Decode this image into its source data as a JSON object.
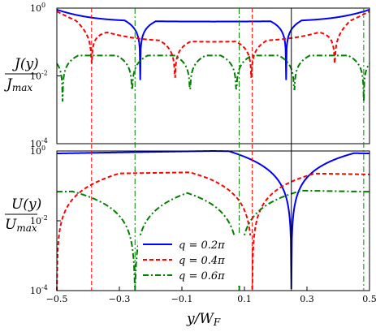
{
  "chart_data": [
    {
      "type": "line",
      "panel": "top",
      "ylabel": "J(y) / J_max",
      "ylabel_num": "J(y)",
      "ylabel_den": "J",
      "ylabel_den_sub": "max",
      "y_scale": "log",
      "ylim": [
        0.0001,
        1
      ],
      "y_ticks": [
        {
          "value": 1,
          "base": "10",
          "exp": "0"
        },
        {
          "value": 0.01,
          "base": "10",
          "exp": "-2"
        },
        {
          "value": 0.0001,
          "base": "10",
          "exp": "-4"
        }
      ],
      "xlim": [
        -0.5,
        0.5
      ],
      "grid": false,
      "series": [
        {
          "name": "q = 0.2π",
          "color": "#0000ff",
          "style": "solid",
          "q": 0.2,
          "dips": [
            -0.2333,
            0.2333
          ],
          "dip_floor": 0.00015,
          "plateau": 0.4,
          "edge": {
            "x": [
              -0.5,
              0.5
            ],
            "y": 0.9
          }
        },
        {
          "name": "q = 0.4π",
          "color": "#ff0000",
          "style": "dashed",
          "q": 0.4,
          "dips": [
            -0.3889,
            -0.1222,
            0.1222,
            0.3889
          ],
          "dip_floor": 0.0008,
          "plateau": 0.1,
          "edge": {
            "x": [
              -0.5,
              0.5
            ],
            "y": 0.8
          }
        },
        {
          "name": "q = 0.6π",
          "color": "#008000",
          "style": "dashdot",
          "q": 0.6,
          "dips": [
            -0.4815,
            -0.2593,
            -0.0741,
            0.0741,
            0.2593,
            0.4815
          ],
          "dip_floor": 0.0003,
          "plateau": 0.04,
          "edge": {
            "x": [],
            "y": 0.5
          }
        }
      ]
    },
    {
      "type": "line",
      "panel": "bottom",
      "ylabel": "U(y) / U_max",
      "ylabel_num": "U(y)",
      "ylabel_den": "U",
      "ylabel_den_sub": "max",
      "xlabel": "y / W_F",
      "xlabel_main": "y/W",
      "xlabel_sub": "F",
      "y_scale": "log",
      "ylim": [
        0.0001,
        1
      ],
      "y_ticks": [
        {
          "value": 1,
          "base": "10",
          "exp": "0"
        },
        {
          "value": 0.01,
          "base": "10",
          "exp": "-2"
        },
        {
          "value": 0.0001,
          "base": "10",
          "exp": "-4"
        }
      ],
      "xlim": [
        -0.5,
        0.5
      ],
      "x_ticks": [
        {
          "value": -0.5,
          "label": "−0.5"
        },
        {
          "value": -0.3,
          "label": "−0.3"
        },
        {
          "value": -0.1,
          "label": "−0.1"
        },
        {
          "value": 0.1,
          "label": "0.1"
        },
        {
          "value": 0.3,
          "label": "0.3"
        },
        {
          "value": 0.5,
          "label": "0.5"
        }
      ],
      "grid": false,
      "legend": {
        "placement": "lower-center",
        "entries": [
          {
            "label": "q = 0.2π",
            "color": "#0000ff",
            "style": "solid"
          },
          {
            "label": "q = 0.4π",
            "color": "#ff0000",
            "style": "dashed"
          },
          {
            "label": "q = 0.6π",
            "color": "#008000",
            "style": "dashdot"
          }
        ]
      },
      "series": [
        {
          "name": "q = 0.2π",
          "color": "#0000ff",
          "style": "solid",
          "q": 0.2,
          "dips": [
            0.25
          ],
          "dip_floor": 0.00012
        },
        {
          "name": "q = 0.4π",
          "color": "#ff0000",
          "style": "dashed",
          "q": 0.4,
          "dips": [
            -0.5,
            0.125
          ],
          "dip_floor": 0.00015
        },
        {
          "name": "q = 0.6π",
          "color": "#008000",
          "style": "dashdot",
          "q": 0.6,
          "dips": [
            -0.25,
            0.0833
          ],
          "dip_floor": 0.00015
        }
      ]
    }
  ],
  "vertical_markers": [
    {
      "x": -0.3889,
      "color": "#ff0000",
      "style": "dashed"
    },
    {
      "x": -0.25,
      "color": "#008000",
      "style": "dashdot"
    },
    {
      "x": 0.0833,
      "color": "#008000",
      "style": "dashdot"
    },
    {
      "x": 0.125,
      "color": "#ff0000",
      "style": "dashed"
    },
    {
      "x": 0.25,
      "color": "#000000",
      "style": "solid"
    },
    {
      "x": 0.4815,
      "color": "#008000",
      "style": "dashdot"
    }
  ]
}
